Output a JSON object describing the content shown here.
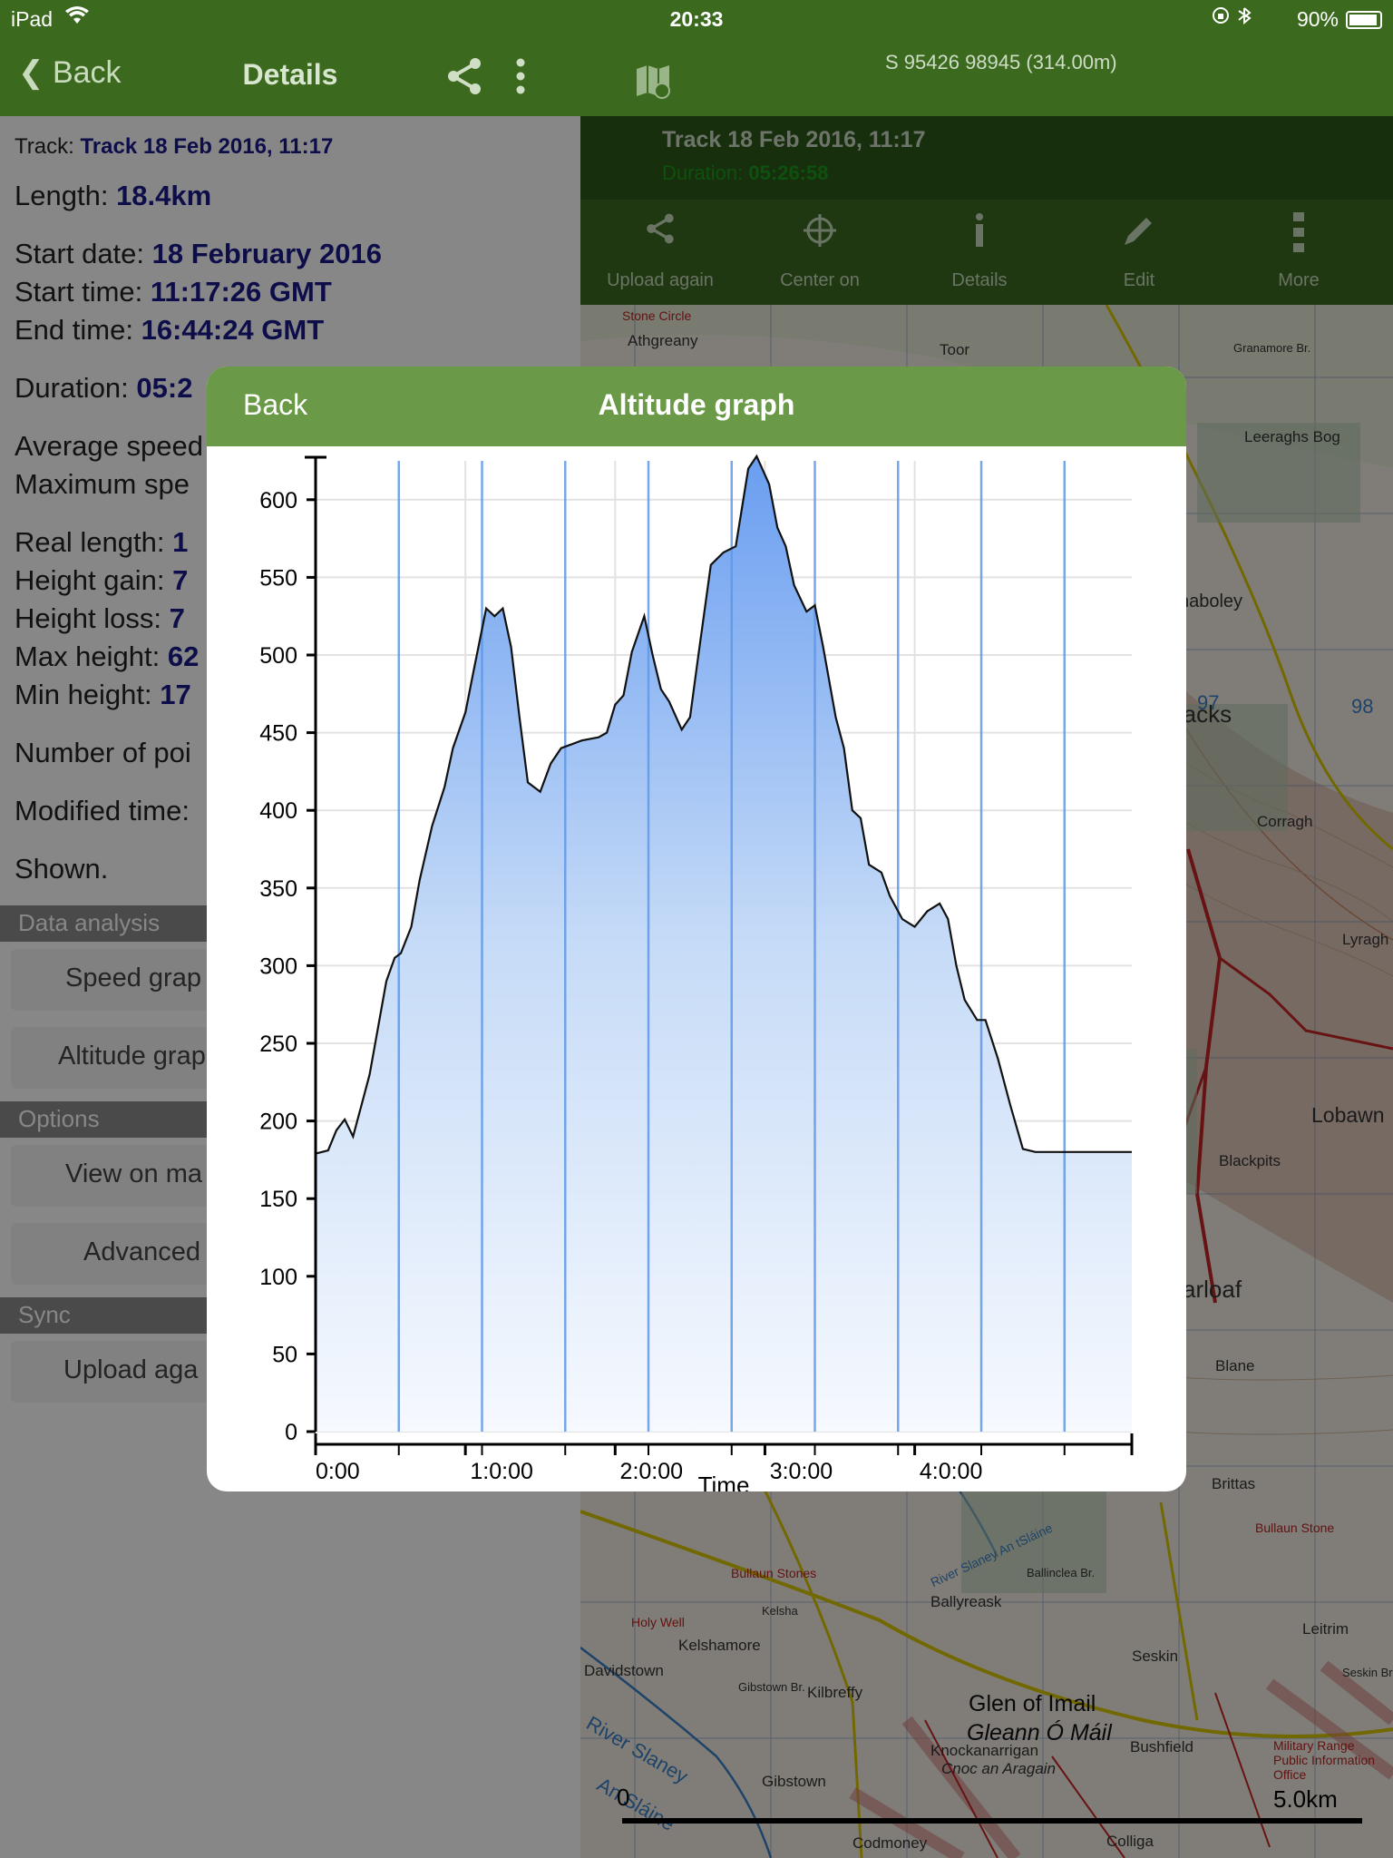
{
  "status_bar": {
    "device": "iPad",
    "time": "20:33",
    "battery": "90%"
  },
  "details_nav": {
    "back_label": "Back",
    "title": "Details"
  },
  "map_header": {
    "coordinates": "S 95426 98945  (314.00m)",
    "track_name": "Track 18 Feb 2016, 11:17",
    "duration_label": "Duration:",
    "duration_value": "05:26:58"
  },
  "map_toolbar": {
    "items": [
      {
        "label": "Upload again",
        "icon": "share-icon"
      },
      {
        "label": "Center on",
        "icon": "crosshair-icon"
      },
      {
        "label": "Details",
        "icon": "info-icon"
      },
      {
        "label": "Edit",
        "icon": "pencil-icon"
      },
      {
        "label": "More",
        "icon": "more-icon"
      }
    ]
  },
  "details": {
    "track_label": "Track:",
    "track_value": "Track 18 Feb 2016, 11:17",
    "length_label": "Length:",
    "length_value": "18.4km",
    "start_date_label": "Start date:",
    "start_date_value": "18 February 2016",
    "start_time_label": "Start time:",
    "start_time_value": "11:17:26 GMT",
    "end_time_label": "End time:",
    "end_time_value": "16:44:24 GMT",
    "duration_label": "Duration:",
    "duration_value": "05:2",
    "avg_speed_label": "Average speed",
    "max_speed_label": "Maximum spe",
    "real_length_label": "Real length:",
    "real_length_value": "1",
    "height_gain_label": "Height gain:",
    "height_gain_value": "7",
    "height_loss_label": "Height loss:",
    "height_loss_value": "7",
    "max_height_label": "Max height:",
    "max_height_value": "62",
    "min_height_label": "Min height:",
    "min_height_value": "17",
    "num_points_label": "Number of poi",
    "modified_label": "Modified time:",
    "shown_label": "Shown."
  },
  "sections": {
    "data_analysis": "Data analysis",
    "speed_graph": "Speed grap",
    "altitude_graph": "Altitude grap",
    "options": "Options",
    "view_on_map": "View on ma",
    "advanced": "Advanced",
    "sync": "Sync",
    "upload_again": "Upload aga"
  },
  "map": {
    "labels": [
      "Athgreany",
      "Toor",
      "Granamore Br.",
      "Leeraghs Bog",
      "haboley",
      "racks",
      "Corragh",
      "Lyragh",
      "Blackpits",
      "Lobawn",
      "arloaf",
      "Blane",
      "Brittas",
      "Bullaun Stone",
      "Ballinclea Br.",
      "Ballyreask",
      "Seskin",
      "Leitrim",
      "Kelsha",
      "Kelshamore",
      "Kilbreffy",
      "Gibstown",
      "Davidstown",
      "Glen of Imail",
      "Gleann Ó Máil",
      "Knockanarrigan",
      "Cnoc an Aragain",
      "Bushfield",
      "Military Range Public Information Office",
      "Colliga",
      "Stone Circle",
      "Holy Well",
      "Bullaun Stones",
      "Gibstown Br.",
      "River Slaney An tSláine",
      "Seskin Br.",
      "97",
      "98",
      "Codmoney",
      "River Slaney",
      "An Sláine"
    ],
    "scale_start": "0",
    "scale_end": "5.0km"
  },
  "modal": {
    "back_label": "Back",
    "title": "Altitude graph"
  },
  "chart_data": {
    "type": "area",
    "title": "Altitude graph",
    "xlabel": "Time",
    "ylabel": "",
    "x_unit": "h:mm:ss",
    "x_tick_labels": [
      "0:00",
      "1:0:00",
      "2:0:00",
      "3:0:00",
      "4:0:00"
    ],
    "x_tick_values": [
      0,
      3600,
      7200,
      10800,
      14400
    ],
    "xlim": [
      0,
      19618
    ],
    "ylim": [
      0,
      625
    ],
    "y_ticks": [
      0,
      50,
      100,
      150,
      200,
      250,
      300,
      350,
      400,
      450,
      500,
      550,
      600
    ],
    "grid": true,
    "vertical_markers": [
      2000,
      4000,
      6000,
      8000,
      10000,
      12000,
      14000,
      16000,
      18000
    ],
    "series": [
      {
        "x": [
          0,
          300,
          500,
          700,
          900,
          1100,
          1300,
          1500,
          1700,
          1900,
          2050,
          2300,
          2500,
          2800,
          3100,
          3300,
          3600,
          3800,
          4100,
          4300,
          4500,
          4700,
          4900,
          5100,
          5400,
          5650,
          5900,
          6100,
          6400,
          6800,
          7000,
          7200,
          7400,
          7600,
          7900,
          8100,
          8300,
          8500,
          8800,
          9000,
          9200,
          9500,
          9800,
          10100,
          10400,
          10600,
          10900,
          11100,
          11300,
          11500,
          11800,
          12000,
          12200,
          12500,
          12700,
          12900,
          13100,
          13300,
          13600,
          13800,
          14100,
          14400,
          14700,
          15000,
          15200,
          15400,
          15600,
          15900,
          16100,
          16400,
          16700,
          17000,
          17300,
          17600,
          17900,
          18200,
          18500,
          18800,
          19200,
          19618
        ],
        "values": [
          179,
          181,
          194,
          201,
          190,
          210,
          230,
          260,
          290,
          305,
          308,
          325,
          355,
          390,
          415,
          440,
          463,
          490,
          530,
          525,
          530,
          505,
          460,
          418,
          412,
          430,
          440,
          442,
          445,
          447,
          450,
          468,
          474,
          502,
          525,
          500,
          478,
          470,
          452,
          460,
          500,
          558,
          566,
          570,
          620,
          628,
          610,
          582,
          570,
          545,
          528,
          532,
          505,
          460,
          440,
          400,
          395,
          365,
          360,
          345,
          330,
          325,
          335,
          340,
          330,
          300,
          278,
          265,
          265,
          240,
          210,
          182,
          180,
          180,
          180,
          180,
          180,
          180,
          180,
          180
        ]
      }
    ]
  }
}
